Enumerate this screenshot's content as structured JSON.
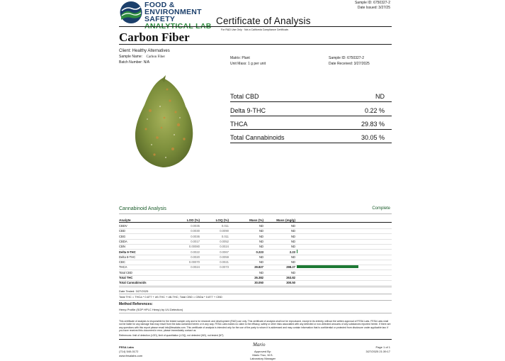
{
  "logo": {
    "line1": "FOOD &",
    "line2": "ENVIRONMENT",
    "line3": "SAFETY",
    "line4": "ANALYTICAL LAB"
  },
  "header": {
    "sample_id": "Sample ID: 6750327-2",
    "date_issued": "Date Issued: 3/27/25",
    "title": "Certificate of Analysis",
    "subtitle": "For R&D Use Only · Not a California Compliance Certificate."
  },
  "product_name": "Carbon Fiber",
  "client": "Client:  Healthy  Alternatives",
  "sample_info": {
    "sample_name_label": "Sample Name:",
    "sample_name_value": "Carbon Fiber",
    "batch": "Batch Number: N/A",
    "matrix": "Matrix: Plant",
    "unit_mass": "Unit Mass: 1 g per unit",
    "sample_id": "Sample ID: 6750327-2",
    "date_received": "Date Received: 3/27/2025"
  },
  "summary": [
    {
      "label": "Total CBD",
      "value": "ND"
    },
    {
      "label": "Delta 9-THC",
      "value": "0.22 %"
    },
    {
      "label": "THCA",
      "value": "29.83 %"
    },
    {
      "label": "Total Cannabinoids",
      "value": "30.05 %"
    }
  ],
  "analysis": {
    "title": "Cannabinoid Analysis",
    "status": "Complete",
    "headers": {
      "analyte": "Analyte",
      "lod": "LOD (%)",
      "loq": "LOQ (%)",
      "mass": "Mass (%)",
      "mgg": "Mass (mg/g)"
    },
    "rows": [
      {
        "analyte": "CBDV",
        "lod": "0.0035",
        "loq": "0.011",
        "mass": "ND",
        "mgg": "ND"
      },
      {
        "analyte": "CBD",
        "lod": "0.0030",
        "loq": "0.0090",
        "mass": "ND",
        "mgg": "ND"
      },
      {
        "analyte": "CBG",
        "lod": "0.0036",
        "loq": "0.011",
        "mass": "ND",
        "mgg": "ND"
      },
      {
        "analyte": "CBDA",
        "lod": "0.0017",
        "loq": "0.0052",
        "mass": "ND",
        "mgg": "ND"
      },
      {
        "analyte": "CBN",
        "lod": "0.00080",
        "loq": "0.0024",
        "mass": "ND",
        "mgg": "ND"
      },
      {
        "analyte": "Delta 9-THC",
        "lod": "0.0022",
        "loq": "0.0067",
        "mass": "0.223",
        "mgg": "2.23"
      },
      {
        "analyte": "Delta 8-THC",
        "lod": "0.0020",
        "loq": "0.0059",
        "mass": "ND",
        "mgg": "ND"
      },
      {
        "analyte": "CBC",
        "lod": "0.00070",
        "loq": "0.0021",
        "mass": "ND",
        "mgg": "ND"
      },
      {
        "analyte": "THCA",
        "lod": "0.0024",
        "loq": "0.0073",
        "mass": "29.827",
        "mgg": "298.27"
      },
      {
        "analyte": "Total CBD",
        "lod": "",
        "loq": "",
        "mass": "ND",
        "mgg": "ND"
      },
      {
        "analyte": "Total THC",
        "lod": "",
        "loq": "",
        "mass": "26.382",
        "mgg": "263.82"
      },
      {
        "analyte": "Total Cannabinoids",
        "lod": "",
        "loq": "",
        "mass": "30.050",
        "mgg": "300.50"
      }
    ],
    "thca_fraction": 0.298
  },
  "notes": {
    "date_tested": "Date Tested: 3/27/2025",
    "formula": "Total THC = THCa * 0.877 + d9-THC + d8-THC; Total CBD = CBDa * 0.877 + CBD",
    "method_refs": "Method References:",
    "method_line": "Hemp Profile (SOP HPLC Hemp) by UV-Detection)",
    "disclaimer": "This certificate of analysis is responsible for the tested sample only and is for research and development (R&D) use only. This certificate of analysis shall not be reproduced, except in its entirety, without the written approval of FESA Labs. FESA Labs shall not be liable for any damage that may result from the data contained herein or in any way. FESA Labs makes no claim to the efficacy, safety or other risks associated with any detected or non-detected amounts of any substances reported herein. If there are any questions with this report please email info@fesalabs.com. This certificate of analysis is intended only for the use of the party to whom it is addressed and may contain information that is confidential or protected from disclosure under applicable law. If you have received this document in error, please immediately contact us.",
    "references": "References: limit of detection (LOD), limit of quantitation (LOQ), not detected (ND), not tested (NT)"
  },
  "footer": {
    "company": "FESA Labs",
    "phone": "(714) 540-0172",
    "website": "www.fesalabs.com",
    "signature": "Mario",
    "approved_by": "Approved By:",
    "approver": "Mario Truc, M.S.",
    "approver_title": "Laboratory Manager",
    "page": "Page 1 of 1",
    "timestamp": "3/27/2025 21:39:17"
  },
  "colors": {
    "logo_blue": "#1b3f6b",
    "logo_green": "#2e8b3e",
    "accent_green": "#1e7a35"
  }
}
